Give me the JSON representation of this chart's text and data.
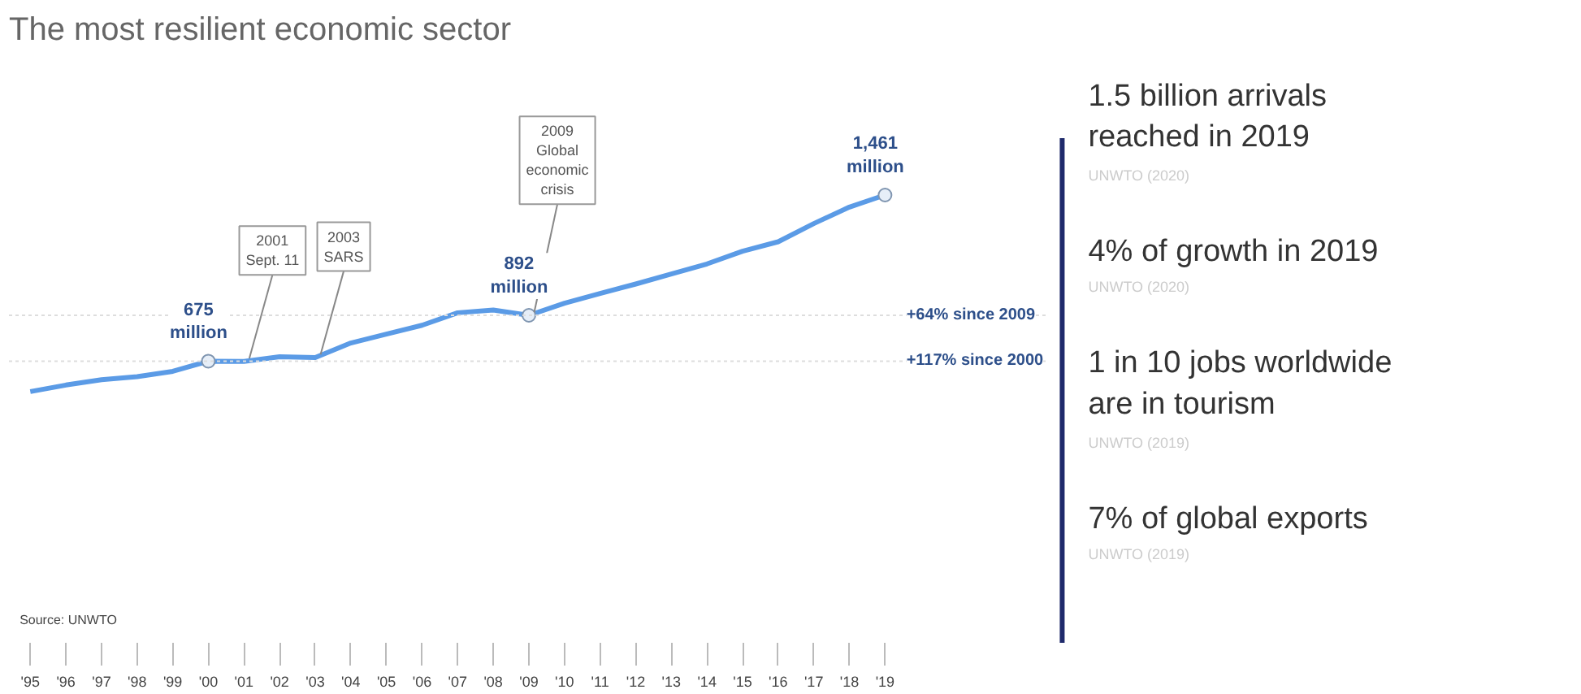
{
  "chart_data": [
    {
      "type": "line",
      "title": "The most resilient economic sector",
      "categories": [
        "'95",
        "'96",
        "'97",
        "'98",
        "'99",
        "'00",
        "'01",
        "'02",
        "'03",
        "'04",
        "'05",
        "'06",
        "'07",
        "'08",
        "'09",
        "'10",
        "'11",
        "'12",
        "'13",
        "'14",
        "'15",
        "'16",
        "'17",
        "'18",
        "'19"
      ],
      "series": [
        {
          "color": "#5b9be6",
          "values": [
            531,
            562,
            587,
            602,
            627,
            675,
            674,
            696,
            692,
            761,
            803,
            845,
            904,
            917,
            892,
            949,
            995,
            1040,
            1088,
            1135,
            1195,
            1240,
            1326,
            1404,
            1461
          ],
          "value_labels": [
            null,
            null,
            null,
            null,
            null,
            "675 million",
            null,
            null,
            null,
            null,
            null,
            null,
            null,
            null,
            "892 million",
            null,
            null,
            null,
            null,
            null,
            null,
            null,
            null,
            null,
            "1,461 million"
          ]
        }
      ],
      "ref_lines": [
        {
          "axis": "y",
          "value": 892,
          "label": "+64% since 2009"
        },
        {
          "axis": "y",
          "value": 675,
          "label": "+117% since 2000"
        }
      ],
      "annotations": [
        {
          "text": "2001\nSept. 11",
          "x": "'01",
          "y": 674
        },
        {
          "text": "2003\nSARS",
          "x": "'03",
          "y": 692
        },
        {
          "text": "2009\nGlobal\neconomic\ncrisis",
          "x": "'09",
          "y": 892
        },
        "Source: UNWTO"
      ],
      "grid": false,
      "tick_labels": "x"
    },
    {
      "type": "other",
      "annotations": [
        "1.5 billion arrivals\nreached in 2019",
        "UNWTO (2020)",
        "4% of growth in 2019",
        "UNWTO (2020)",
        "1 in 10 jobs worldwide\nare in tourism",
        "UNWTO (2019)",
        "7% of global exports",
        "UNWTO (2019)"
      ]
    }
  ]
}
